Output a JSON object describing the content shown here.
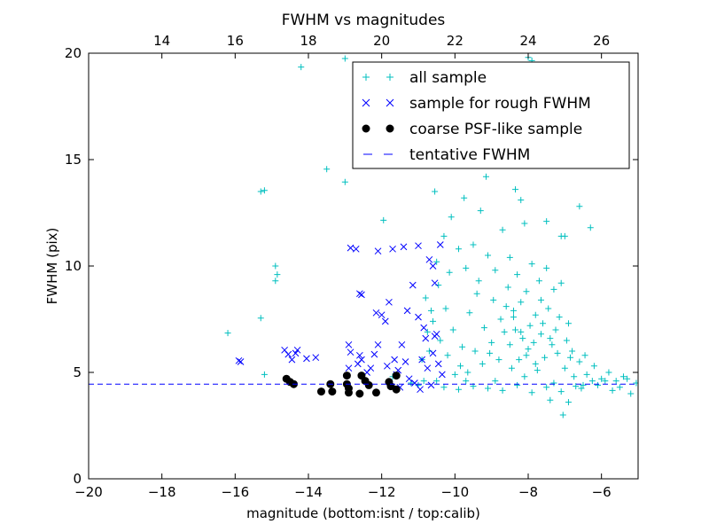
{
  "chart_data": {
    "type": "scatter",
    "title": "FWHM vs magnitudes",
    "xlabel": "magnitude (bottom:isnt / top:calib)",
    "ylabel": "FWHM (pix)",
    "xlim": [
      -20,
      -5
    ],
    "ylim": [
      0,
      20
    ],
    "x_ticks": [
      -20,
      -18,
      -16,
      -14,
      -12,
      -10,
      -8,
      -6
    ],
    "y_ticks": [
      0,
      5,
      10,
      15,
      20
    ],
    "top_axis": {
      "ticks": [
        14,
        16,
        18,
        20,
        22,
        24,
        26
      ],
      "offset": 32
    },
    "grid": false,
    "legend": {
      "placement": "top-right",
      "entries": [
        "all sample",
        "sample for rough FWHM",
        "coarse PSF-like sample",
        "tentative FWHM"
      ]
    },
    "tentative_fwhm": 4.45,
    "series": [
      {
        "name": "all sample",
        "marker": "plus",
        "color": "#00bfbf",
        "note": "outlier points plus a dense cloud between magnitudes -11 and -5 (sampled)",
        "points": [
          [
            -14.2,
            19.35
          ],
          [
            -13.0,
            19.75
          ],
          [
            -13.5,
            14.55
          ],
          [
            -13.0,
            13.95
          ],
          [
            -15.3,
            13.5
          ],
          [
            -15.2,
            13.55
          ],
          [
            -15.3,
            7.55
          ],
          [
            -16.2,
            6.85
          ],
          [
            -15.2,
            4.9
          ],
          [
            -14.9,
            10.0
          ],
          [
            -14.85,
            9.6
          ],
          [
            -14.9,
            9.3
          ],
          [
            -11.95,
            12.15
          ],
          [
            -11.7,
            4.8
          ],
          [
            -11.2,
            4.5
          ],
          [
            -10.6,
            17.9
          ],
          [
            -10.3,
            16.5
          ],
          [
            -9.8,
            16.2
          ],
          [
            -9.3,
            16.1
          ],
          [
            -8.6,
            14.9
          ],
          [
            -8.2,
            13.1
          ],
          [
            -7.5,
            12.1
          ],
          [
            -7.1,
            11.4
          ],
          [
            -7.0,
            11.4
          ],
          [
            -6.6,
            12.8
          ],
          [
            -6.3,
            11.8
          ],
          [
            -6.1,
            4.4
          ],
          [
            -5.9,
            4.6
          ],
          [
            -5.5,
            4.3
          ],
          [
            -5.2,
            4.0
          ],
          [
            -5.05,
            4.5
          ],
          [
            -7.9,
            19.65
          ],
          [
            -8.0,
            19.8
          ],
          [
            -7.05,
            3.0
          ],
          [
            -6.55,
            4.25
          ],
          [
            -6.9,
            3.6
          ],
          [
            -7.4,
            3.7
          ],
          [
            -10.5,
            10.2
          ],
          [
            -10.3,
            11.4
          ],
          [
            -10.1,
            12.3
          ],
          [
            -9.9,
            10.8
          ],
          [
            -9.7,
            9.9
          ],
          [
            -9.5,
            11.0
          ],
          [
            -9.3,
            12.6
          ],
          [
            -9.1,
            10.5
          ],
          [
            -8.9,
            9.8
          ],
          [
            -8.7,
            11.7
          ],
          [
            -8.5,
            10.4
          ],
          [
            -8.3,
            9.6
          ],
          [
            -8.1,
            12.0
          ],
          [
            -7.9,
            10.1
          ],
          [
            -7.7,
            9.3
          ],
          [
            -7.5,
            9.9
          ],
          [
            -7.3,
            8.9
          ],
          [
            -7.1,
            9.2
          ],
          [
            -10.8,
            8.5
          ],
          [
            -10.6,
            7.4
          ],
          [
            -10.4,
            6.5
          ],
          [
            -10.2,
            5.8
          ],
          [
            -10.0,
            4.9
          ],
          [
            -9.8,
            6.2
          ],
          [
            -9.6,
            7.8
          ],
          [
            -9.4,
            8.7
          ],
          [
            -9.2,
            7.1
          ],
          [
            -9.0,
            6.4
          ],
          [
            -8.8,
            5.6
          ],
          [
            -8.6,
            8.1
          ],
          [
            -8.4,
            7.6
          ],
          [
            -8.2,
            6.9
          ],
          [
            -8.0,
            6.1
          ],
          [
            -7.8,
            5.4
          ],
          [
            -7.6,
            7.3
          ],
          [
            -7.4,
            6.6
          ],
          [
            -7.2,
            5.9
          ],
          [
            -7.0,
            5.2
          ],
          [
            -6.8,
            6.0
          ],
          [
            -6.6,
            5.5
          ],
          [
            -6.4,
            4.9
          ],
          [
            -6.2,
            5.3
          ],
          [
            -6.0,
            4.7
          ],
          [
            -5.8,
            5.0
          ],
          [
            -5.6,
            4.6
          ],
          [
            -5.4,
            4.8
          ],
          [
            -10.3,
            4.3
          ],
          [
            -9.9,
            4.2
          ],
          [
            -9.5,
            4.35
          ],
          [
            -9.1,
            4.25
          ],
          [
            -8.7,
            4.15
          ],
          [
            -8.3,
            4.4
          ],
          [
            -7.9,
            4.05
          ],
          [
            -7.5,
            4.3
          ],
          [
            -7.1,
            4.1
          ],
          [
            -6.7,
            4.35
          ],
          [
            -8.5,
            6.3
          ],
          [
            -8.35,
            7.0
          ],
          [
            -8.15,
            6.6
          ],
          [
            -7.95,
            7.2
          ],
          [
            -7.85,
            6.4
          ],
          [
            -8.05,
            5.8
          ],
          [
            -7.65,
            6.8
          ],
          [
            -8.45,
            5.2
          ],
          [
            -8.25,
            5.6
          ],
          [
            -7.75,
            5.1
          ],
          [
            -7.55,
            5.7
          ],
          [
            -8.65,
            6.9
          ],
          [
            -8.75,
            7.5
          ],
          [
            -9.05,
            5.9
          ],
          [
            -7.35,
            6.3
          ],
          [
            -7.25,
            7.0
          ],
          [
            -6.95,
            6.5
          ],
          [
            -6.85,
            5.7
          ],
          [
            -6.75,
            4.8
          ],
          [
            -6.45,
            5.8
          ],
          [
            -6.25,
            4.6
          ],
          [
            -10.7,
            6.0
          ],
          [
            -10.65,
            7.9
          ],
          [
            -10.45,
            9.1
          ],
          [
            -10.25,
            8.0
          ],
          [
            -10.05,
            7.0
          ],
          [
            -9.85,
            5.3
          ],
          [
            -9.65,
            5.0
          ],
          [
            -9.45,
            6.0
          ],
          [
            -9.25,
            5.4
          ],
          [
            -8.95,
            8.4
          ],
          [
            -8.55,
            9.0
          ],
          [
            -8.05,
            8.8
          ],
          [
            -7.65,
            8.4
          ],
          [
            -7.45,
            8.0
          ],
          [
            -7.15,
            7.6
          ],
          [
            -6.9,
            7.3
          ],
          [
            -8.4,
            7.9
          ],
          [
            -8.2,
            8.3
          ],
          [
            -7.8,
            7.7
          ],
          [
            -9.35,
            9.3
          ],
          [
            -10.15,
            9.7
          ],
          [
            -10.55,
            13.5
          ],
          [
            -9.75,
            13.2
          ],
          [
            -9.15,
            14.2
          ],
          [
            -8.35,
            13.6
          ],
          [
            -10.85,
            4.6
          ],
          [
            -10.9,
            5.6
          ],
          [
            -10.75,
            6.9
          ],
          [
            -11.0,
            4.4
          ],
          [
            -5.7,
            4.15
          ],
          [
            -5.3,
            4.7
          ],
          [
            -8.9,
            4.6
          ],
          [
            -8.1,
            4.8
          ],
          [
            -7.3,
            4.5
          ],
          [
            -6.5,
            4.4
          ],
          [
            -9.7,
            4.6
          ],
          [
            -10.5,
            4.6
          ]
        ]
      },
      {
        "name": "sample for rough FWHM",
        "marker": "x",
        "color": "#0000ff",
        "points": [
          [
            -15.9,
            5.55
          ],
          [
            -15.85,
            5.5
          ],
          [
            -14.65,
            6.05
          ],
          [
            -14.55,
            5.85
          ],
          [
            -14.45,
            5.6
          ],
          [
            -14.35,
            5.9
          ],
          [
            -14.3,
            6.05
          ],
          [
            -14.05,
            5.65
          ],
          [
            -13.8,
            5.7
          ],
          [
            -12.9,
            6.3
          ],
          [
            -12.85,
            5.95
          ],
          [
            -12.65,
            5.4
          ],
          [
            -12.9,
            5.2
          ],
          [
            -12.6,
            8.7
          ],
          [
            -12.55,
            8.65
          ],
          [
            -12.55,
            5.6
          ],
          [
            -12.3,
            5.2
          ],
          [
            -12.2,
            5.85
          ],
          [
            -12.1,
            6.3
          ],
          [
            -12.15,
            7.8
          ],
          [
            -12.0,
            7.7
          ],
          [
            -11.9,
            7.4
          ],
          [
            -11.8,
            8.3
          ],
          [
            -11.65,
            5.6
          ],
          [
            -11.55,
            5.1
          ],
          [
            -11.45,
            6.3
          ],
          [
            -11.3,
            7.9
          ],
          [
            -11.15,
            9.1
          ],
          [
            -11.0,
            7.6
          ],
          [
            -10.9,
            5.6
          ],
          [
            -10.8,
            6.6
          ],
          [
            -10.7,
            10.3
          ],
          [
            -10.6,
            10.0
          ],
          [
            -10.55,
            9.2
          ],
          [
            -10.5,
            6.8
          ],
          [
            -10.75,
            5.2
          ],
          [
            -11.7,
            10.8
          ],
          [
            -11.4,
            10.9
          ],
          [
            -11.0,
            10.95
          ],
          [
            -10.4,
            11.0
          ],
          [
            -12.85,
            10.85
          ],
          [
            -12.7,
            10.8
          ],
          [
            -12.1,
            10.7
          ],
          [
            -12.6,
            5.8
          ],
          [
            -11.85,
            5.3
          ],
          [
            -11.35,
            5.5
          ],
          [
            -11.1,
            4.5
          ],
          [
            -10.95,
            4.2
          ],
          [
            -10.65,
            4.4
          ],
          [
            -11.25,
            4.7
          ],
          [
            -11.5,
            4.3
          ],
          [
            -10.45,
            5.4
          ],
          [
            -10.55,
            6.7
          ],
          [
            -10.85,
            7.1
          ],
          [
            -11.6,
            4.9
          ],
          [
            -12.4,
            5.0
          ],
          [
            -10.35,
            4.9
          ],
          [
            -10.6,
            5.9
          ]
        ]
      },
      {
        "name": "coarse PSF-like sample",
        "marker": "dot",
        "color": "#000000",
        "points": [
          [
            -14.6,
            4.7
          ],
          [
            -14.5,
            4.55
          ],
          [
            -14.4,
            4.45
          ],
          [
            -13.65,
            4.1
          ],
          [
            -13.4,
            4.45
          ],
          [
            -13.35,
            4.1
          ],
          [
            -12.95,
            4.85
          ],
          [
            -12.95,
            4.45
          ],
          [
            -12.9,
            4.05
          ],
          [
            -12.9,
            4.25
          ],
          [
            -12.6,
            4.0
          ],
          [
            -12.55,
            4.85
          ],
          [
            -12.45,
            4.6
          ],
          [
            -12.35,
            4.4
          ],
          [
            -12.15,
            4.05
          ],
          [
            -11.8,
            4.55
          ],
          [
            -11.75,
            4.35
          ],
          [
            -11.6,
            4.85
          ],
          [
            -11.6,
            4.2
          ]
        ]
      }
    ]
  }
}
